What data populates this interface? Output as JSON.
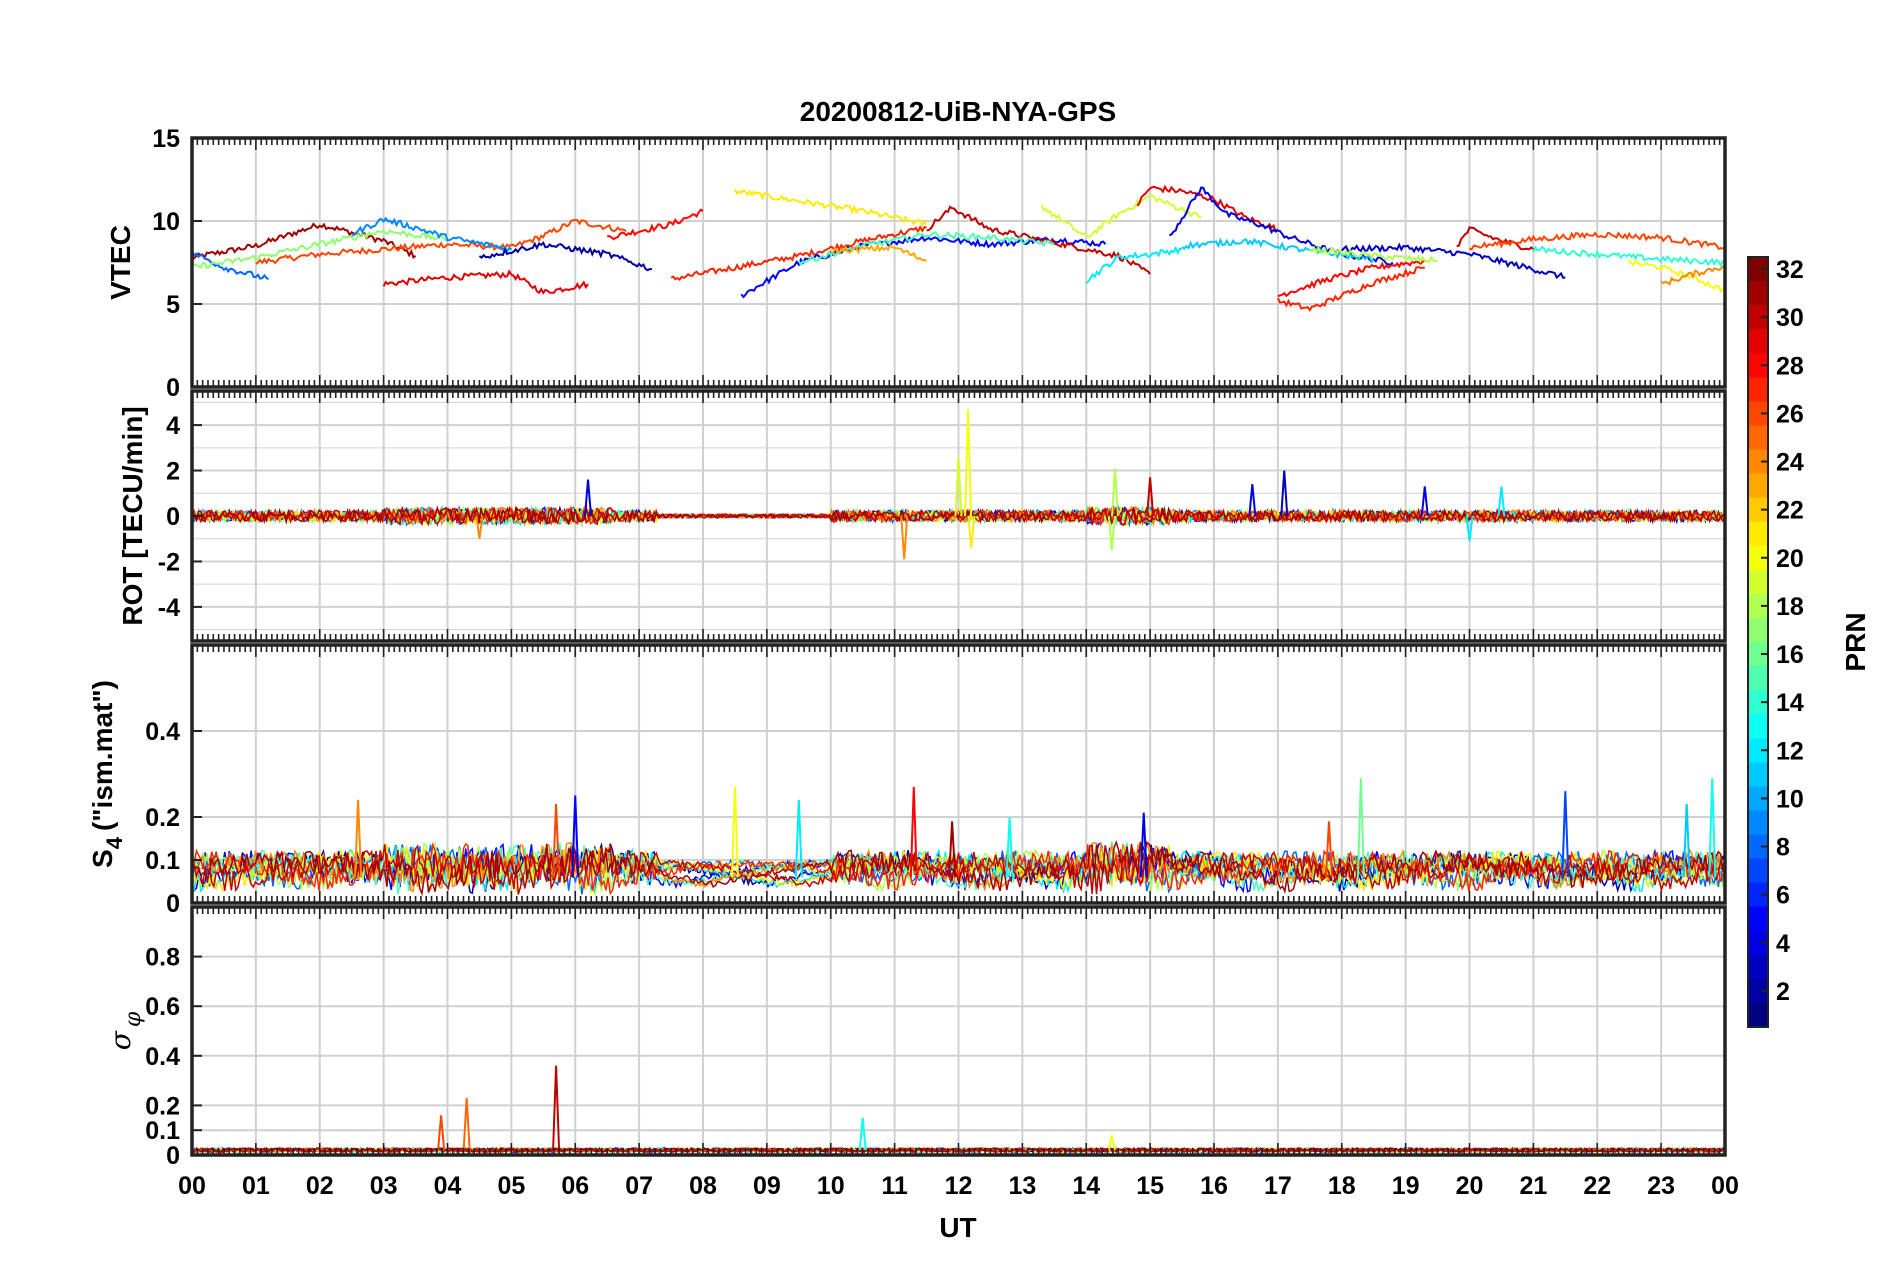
{
  "figure": {
    "title": "20200812-UiB-NYA-GPS",
    "xlabel": "UT"
  },
  "chart_data": [
    {
      "type": "line",
      "ylabel": "VTEC",
      "ylim": [
        0,
        15
      ],
      "yticks": [
        0,
        5,
        10,
        15
      ],
      "xlim": [
        0,
        24
      ],
      "grid": true,
      "series": [
        {
          "prn": 31,
          "x": [
            0,
            1,
            2,
            3,
            3.5
          ],
          "y": [
            7.8,
            8.5,
            9.8,
            8.8,
            7.9
          ]
        },
        {
          "prn": 26,
          "x": [
            1,
            2,
            3,
            4,
            5,
            5.5,
            6,
            6.8
          ],
          "y": [
            7.5,
            8.0,
            8.3,
            8.6,
            8.4,
            9.1,
            10.0,
            9.4
          ]
        },
        {
          "prn": 29,
          "x": [
            3,
            4,
            5,
            5.5,
            6.2
          ],
          "y": [
            6.2,
            6.6,
            6.8,
            5.7,
            6.2
          ]
        },
        {
          "prn": 28,
          "x": [
            6.5,
            7.5,
            8.0
          ],
          "y": [
            9.0,
            9.8,
            10.6
          ]
        },
        {
          "prn": 27,
          "x": [
            7.5,
            8.5,
            9.5,
            10.5,
            11.5
          ],
          "y": [
            6.5,
            7.2,
            7.9,
            8.8,
            9.6
          ]
        },
        {
          "prn": 21,
          "x": [
            8.5,
            9.5,
            10.5,
            11.5
          ],
          "y": [
            11.8,
            11.2,
            10.6,
            9.8
          ]
        },
        {
          "prn": 5,
          "x": [
            8.6,
            9.5,
            10.5,
            11.5,
            12.5,
            13.5,
            14.3
          ],
          "y": [
            5.5,
            7.5,
            8.5,
            9.0,
            8.6,
            8.9,
            8.6
          ]
        },
        {
          "prn": 30,
          "x": [
            11.5,
            11.9,
            12.5,
            13.5,
            14.5,
            15.0
          ],
          "y": [
            9.5,
            10.8,
            9.5,
            8.7,
            7.9,
            6.8
          ]
        },
        {
          "prn": 19,
          "x": [
            13.3,
            14.0,
            14.5,
            15.0,
            15.8
          ],
          "y": [
            10.9,
            9.0,
            10.4,
            11.5,
            10.2
          ]
        },
        {
          "prn": 29,
          "x": [
            14.8,
            15.0,
            15.5,
            16.0,
            16.5,
            17.0
          ],
          "y": [
            11.0,
            12.0,
            11.8,
            11.3,
            10.2,
            9.5
          ]
        },
        {
          "prn": 4,
          "x": [
            15.3,
            15.8,
            16.2,
            16.7,
            17.2,
            18.0,
            18.8
          ],
          "y": [
            9.0,
            12.0,
            10.4,
            9.8,
            9.0,
            8.0,
            7.5
          ]
        },
        {
          "prn": 12,
          "x": [
            14.0,
            14.5,
            15.0,
            15.5
          ],
          "y": [
            6.4,
            7.8,
            8.0,
            8.3
          ]
        },
        {
          "prn": 27,
          "x": [
            17.0,
            17.5,
            18.0,
            18.5,
            19.3
          ],
          "y": [
            5.2,
            4.7,
            5.5,
            6.3,
            7.2
          ]
        },
        {
          "prn": 28,
          "x": [
            17.0,
            17.8,
            18.5,
            19.3
          ],
          "y": [
            5.5,
            6.5,
            7.2,
            7.6
          ]
        },
        {
          "prn": 3,
          "x": [
            18.0,
            19.0,
            20.0,
            21.0,
            21.5
          ],
          "y": [
            8.3,
            8.4,
            8.0,
            7.1,
            6.6
          ]
        },
        {
          "prn": 30,
          "x": [
            19.8,
            20.0,
            20.5,
            21.0
          ],
          "y": [
            8.5,
            9.5,
            8.8,
            8.3
          ]
        },
        {
          "prn": 26,
          "x": [
            20.0,
            21.0,
            22.0,
            23.0,
            24.0
          ],
          "y": [
            8.4,
            8.9,
            9.2,
            9.0,
            8.4
          ]
        },
        {
          "prn": 20,
          "x": [
            22.5,
            23.0,
            23.5,
            24.0
          ],
          "y": [
            7.5,
            7.2,
            6.6,
            5.8
          ]
        },
        {
          "prn": 14,
          "x": [
            21.0,
            22.0,
            23.0,
            24.0
          ],
          "y": [
            8.3,
            8.0,
            7.7,
            7.5
          ]
        },
        {
          "prn": 24,
          "x": [
            23.0,
            23.5,
            24.0
          ],
          "y": [
            6.2,
            6.8,
            7.3
          ]
        },
        {
          "prn": 8,
          "x": [
            0,
            0.5,
            1.2
          ],
          "y": [
            8.1,
            7.2,
            6.5
          ]
        },
        {
          "prn": 17,
          "x": [
            0,
            1,
            2,
            3,
            4
          ],
          "y": [
            7.2,
            7.8,
            8.6,
            9.4,
            8.9
          ]
        },
        {
          "prn": 9,
          "x": [
            2.5,
            3,
            3.5,
            4,
            5
          ],
          "y": [
            9.2,
            10.1,
            9.6,
            9.0,
            8.3
          ]
        },
        {
          "prn": 2,
          "x": [
            4.5,
            5.5,
            6.5,
            7.2
          ],
          "y": [
            7.8,
            8.6,
            8.0,
            7.1
          ]
        },
        {
          "prn": 15,
          "x": [
            9.5,
            10.5,
            11.5,
            12.5,
            13.5
          ],
          "y": [
            7.5,
            8.5,
            9.2,
            9.0,
            8.6
          ]
        },
        {
          "prn": 23,
          "x": [
            10.0,
            11.0,
            11.5
          ],
          "y": [
            8.2,
            8.4,
            7.6
          ]
        },
        {
          "prn": 11,
          "x": [
            15.5,
            16.5,
            17.5,
            18.5
          ],
          "y": [
            8.5,
            8.8,
            8.2,
            7.7
          ]
        },
        {
          "prn": 18,
          "x": [
            17.5,
            18.5,
            19.5
          ],
          "y": [
            8.3,
            7.9,
            7.6
          ]
        }
      ]
    },
    {
      "type": "line",
      "ylabel": "ROT [TECU/min]",
      "ylim": [
        -5.5,
        5.5
      ],
      "yticks": [
        -4,
        -2,
        0,
        2,
        4
      ],
      "xlim": [
        0,
        24
      ],
      "grid": true,
      "spikes": [
        {
          "prn": 20,
          "x": 12.15,
          "y": 4.7
        },
        {
          "prn": 19,
          "x": 12.0,
          "y": 2.6
        },
        {
          "prn": 21,
          "x": 12.2,
          "y": -1.4
        },
        {
          "prn": 24,
          "x": 11.15,
          "y": -1.9
        },
        {
          "prn": 18,
          "x": 14.45,
          "y": 2.1
        },
        {
          "prn": 18,
          "x": 14.4,
          "y": -1.5
        },
        {
          "prn": 30,
          "x": 15.0,
          "y": 1.7
        },
        {
          "prn": 3,
          "x": 17.1,
          "y": 2.0
        },
        {
          "prn": 4,
          "x": 16.6,
          "y": 1.4
        },
        {
          "prn": 4,
          "x": 6.2,
          "y": 1.6
        },
        {
          "prn": 4,
          "x": 19.3,
          "y": 1.3
        },
        {
          "prn": 12,
          "x": 20.5,
          "y": 1.3
        },
        {
          "prn": 12,
          "x": 20.0,
          "y": -1.1
        },
        {
          "prn": 24,
          "x": 4.5,
          "y": -1.0
        }
      ]
    },
    {
      "type": "line",
      "ylabel": "S4 (\"ism.mat\")",
      "ylabel_main": "S",
      "ylabel_sub": "4",
      "ylabel_rest": "(\"ism.mat\")",
      "ylim": [
        0,
        0.6
      ],
      "yticks": [
        0,
        0.1,
        0.2,
        0.4
      ],
      "ytick_labels": [
        "0",
        "0.1",
        "0.2",
        "0.4"
      ],
      "xlim": [
        0,
        24
      ],
      "grid": true,
      "spikes": [
        {
          "prn": 24,
          "x": 2.6,
          "y": 0.24
        },
        {
          "prn": 5,
          "x": 6.0,
          "y": 0.25
        },
        {
          "prn": 26,
          "x": 5.7,
          "y": 0.23
        },
        {
          "prn": 20,
          "x": 8.5,
          "y": 0.27
        },
        {
          "prn": 12,
          "x": 9.5,
          "y": 0.24
        },
        {
          "prn": 28,
          "x": 11.3,
          "y": 0.27
        },
        {
          "prn": 31,
          "x": 11.9,
          "y": 0.19
        },
        {
          "prn": 13,
          "x": 12.8,
          "y": 0.2
        },
        {
          "prn": 4,
          "x": 14.9,
          "y": 0.21
        },
        {
          "prn": 16,
          "x": 18.3,
          "y": 0.29
        },
        {
          "prn": 26,
          "x": 17.8,
          "y": 0.19
        },
        {
          "prn": 7,
          "x": 21.5,
          "y": 0.26
        },
        {
          "prn": 13,
          "x": 23.8,
          "y": 0.29
        },
        {
          "prn": 11,
          "x": 23.4,
          "y": 0.23
        }
      ]
    },
    {
      "type": "line",
      "ylabel_sym": "σ",
      "ylabel_sub": "φ",
      "ylim": [
        0,
        1
      ],
      "yticks": [
        0,
        0.1,
        0.2,
        0.4,
        0.6,
        0.8
      ],
      "ytick_labels": [
        "0",
        "0.1",
        "0.2",
        "0.4",
        "0.6",
        "0.8"
      ],
      "xlim": [
        0,
        24
      ],
      "xticks": [
        0,
        1,
        2,
        3,
        4,
        5,
        6,
        7,
        8,
        9,
        10,
        11,
        12,
        13,
        14,
        15,
        16,
        17,
        18,
        19,
        20,
        21,
        22,
        23,
        24
      ],
      "xtick_labels": [
        "00",
        "01",
        "02",
        "03",
        "04",
        "05",
        "06",
        "07",
        "08",
        "09",
        "10",
        "11",
        "12",
        "13",
        "14",
        "15",
        "16",
        "17",
        "18",
        "19",
        "20",
        "21",
        "22",
        "23",
        "00"
      ],
      "grid": true,
      "spikes": [
        {
          "prn": 30,
          "x": 5.7,
          "y": 0.36
        },
        {
          "prn": 25,
          "x": 4.3,
          "y": 0.23
        },
        {
          "prn": 26,
          "x": 3.9,
          "y": 0.16
        },
        {
          "prn": 13,
          "x": 10.5,
          "y": 0.15
        },
        {
          "prn": 20,
          "x": 14.4,
          "y": 0.08
        }
      ]
    }
  ],
  "colorbar": {
    "label": "PRN",
    "min": 1,
    "max": 32,
    "ticks": [
      2,
      4,
      6,
      8,
      10,
      12,
      14,
      16,
      18,
      20,
      22,
      24,
      26,
      28,
      30,
      32
    ],
    "colormap": "jet"
  }
}
